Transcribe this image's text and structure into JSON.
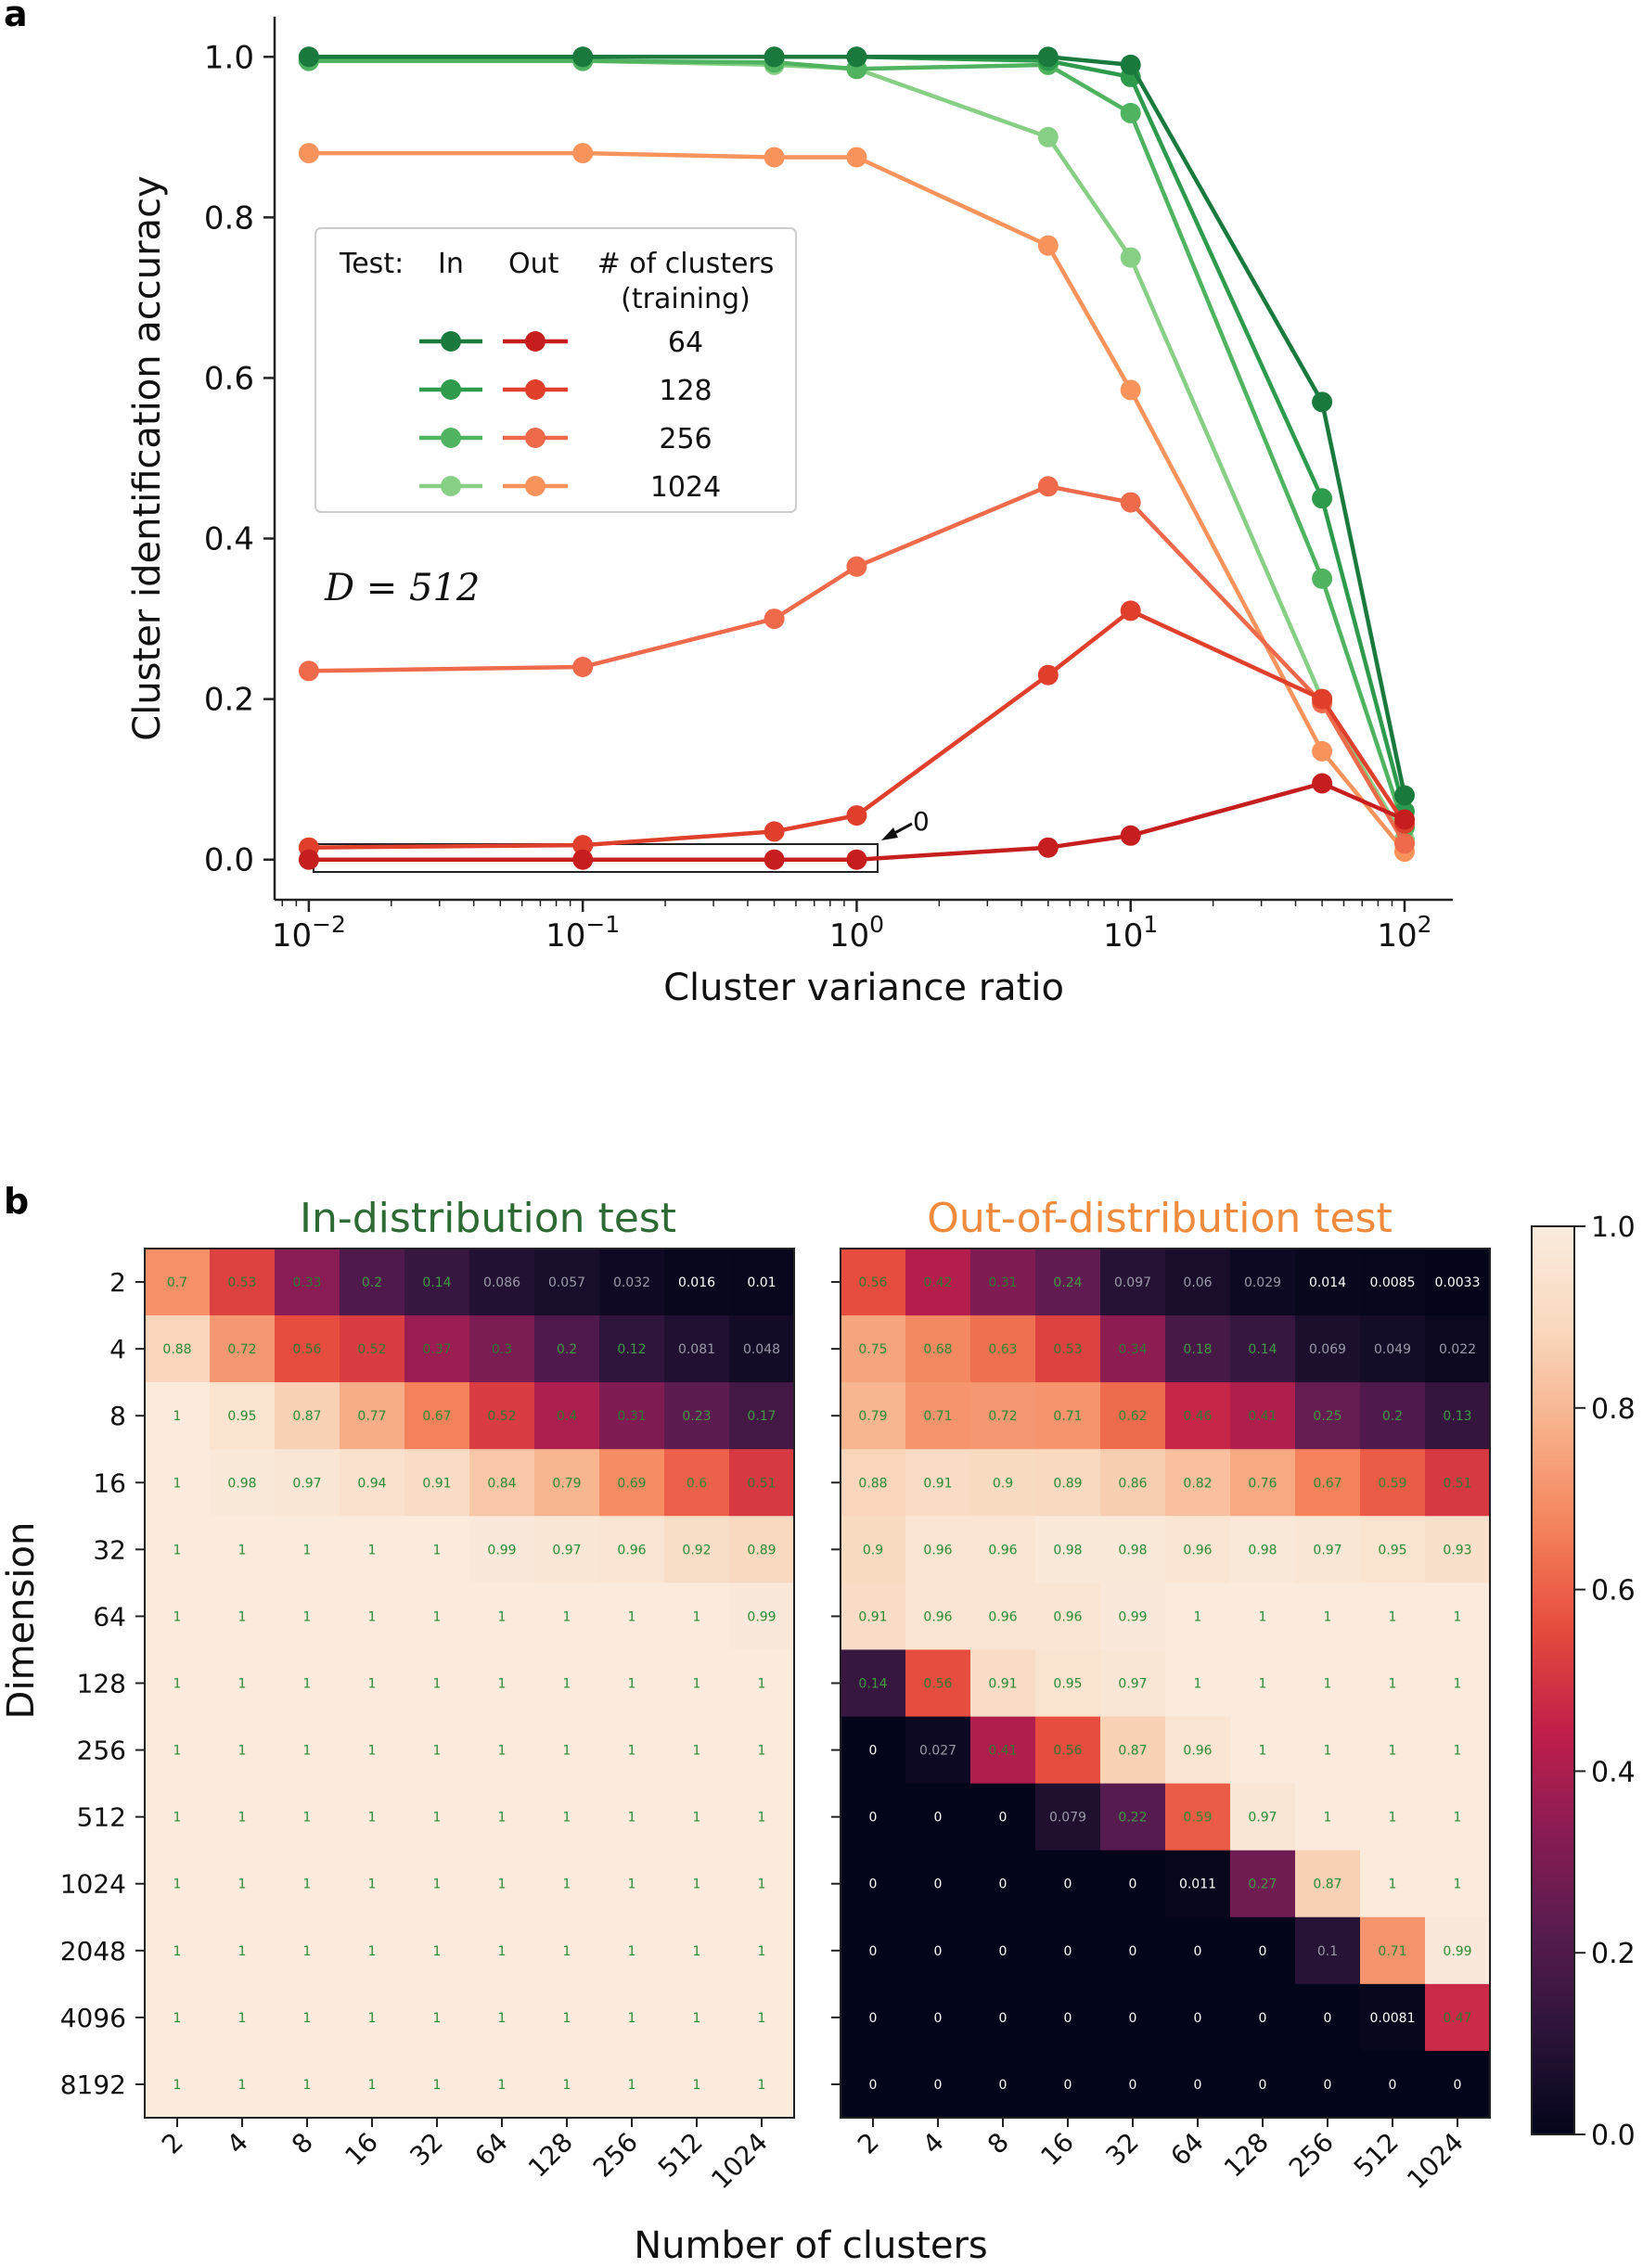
{
  "panels": {
    "a": "a",
    "b": "b"
  },
  "chart_data": [
    {
      "type": "line",
      "panel": "a",
      "xscale": "log",
      "xlabel": "Cluster variance ratio",
      "ylabel": "Cluster identification accuracy",
      "xlim": [
        0.0075,
        150
      ],
      "ylim": [
        -0.05,
        1.05
      ],
      "xticks": [
        {
          "value": 0.01,
          "base": "10",
          "exp": "−2"
        },
        {
          "value": 0.1,
          "base": "10",
          "exp": "−1"
        },
        {
          "value": 1,
          "base": "10",
          "exp": "0"
        },
        {
          "value": 10,
          "base": "10",
          "exp": "1"
        },
        {
          "value": 100,
          "base": "10",
          "exp": "2"
        }
      ],
      "yticks": [
        "0.0",
        "0.2",
        "0.4",
        "0.6",
        "0.8",
        "1.0"
      ],
      "annotation": {
        "text": "D = 512",
        "note": "0"
      },
      "legend": {
        "position": "upper-left",
        "header_test": "Test:",
        "header_in": "In",
        "header_out": "Out",
        "header_clusters_line1": "# of clusters",
        "header_clusters_line2": "(training)",
        "entries": [
          "64",
          "128",
          "256",
          "1024"
        ]
      },
      "x": [
        0.01,
        0.1,
        0.5,
        1,
        5,
        10,
        50,
        100
      ],
      "series": [
        {
          "name": "In 64",
          "test": "in",
          "clusters": "64",
          "color": "#1a7a3e",
          "values": [
            1.0,
            1.0,
            1.0,
            1.0,
            1.0,
            0.99,
            0.57,
            0.08
          ]
        },
        {
          "name": "In 128",
          "test": "in",
          "clusters": "128",
          "color": "#2e9a4c",
          "values": [
            1.0,
            1.0,
            1.0,
            1.0,
            0.995,
            0.975,
            0.45,
            0.06
          ]
        },
        {
          "name": "In 256",
          "test": "in",
          "clusters": "256",
          "color": "#4fb35f",
          "values": [
            0.995,
            0.995,
            0.993,
            0.985,
            0.99,
            0.93,
            0.35,
            0.04
          ]
        },
        {
          "name": "In 1024",
          "test": "in",
          "clusters": "1024",
          "color": "#86cf84",
          "values": [
            0.995,
            0.995,
            0.99,
            0.985,
            0.9,
            0.75,
            0.2,
            0.025
          ]
        },
        {
          "name": "Out 64",
          "test": "out",
          "clusters": "64",
          "color": "#c61e1e",
          "values": [
            0.0,
            0.0,
            0.0,
            0.0,
            0.015,
            0.03,
            0.095,
            0.05
          ]
        },
        {
          "name": "Out 128",
          "test": "out",
          "clusters": "128",
          "color": "#e03f2c",
          "values": [
            0.015,
            0.018,
            0.035,
            0.055,
            0.23,
            0.31,
            0.2,
            0.045
          ]
        },
        {
          "name": "Out 256",
          "test": "out",
          "clusters": "256",
          "color": "#ef6a4a",
          "values": [
            0.235,
            0.24,
            0.3,
            0.365,
            0.465,
            0.445,
            0.195,
            0.02
          ]
        },
        {
          "name": "Out 1024",
          "test": "out",
          "clusters": "1024",
          "color": "#f8935c",
          "values": [
            0.88,
            0.88,
            0.875,
            0.875,
            0.765,
            0.585,
            0.135,
            0.01
          ]
        }
      ]
    },
    {
      "type": "heatmap",
      "panel": "b",
      "title": "In-distribution test",
      "title_color": "#2e6b34",
      "xlabel": "Number of clusters",
      "ylabel": "Dimension",
      "x_categories": [
        "2",
        "4",
        "8",
        "16",
        "32",
        "64",
        "128",
        "256",
        "512",
        "1024"
      ],
      "y_categories": [
        "2",
        "4",
        "8",
        "16",
        "32",
        "64",
        "128",
        "256",
        "512",
        "1024",
        "2048",
        "4096",
        "8192"
      ],
      "values": [
        [
          0.7,
          0.53,
          0.33,
          0.2,
          0.14,
          0.086,
          0.057,
          0.032,
          0.016,
          0.01
        ],
        [
          0.88,
          0.72,
          0.56,
          0.52,
          0.37,
          0.3,
          0.2,
          0.12,
          0.081,
          0.048
        ],
        [
          1.0,
          0.95,
          0.87,
          0.77,
          0.67,
          0.52,
          0.4,
          0.31,
          0.23,
          0.17
        ],
        [
          1.0,
          0.98,
          0.97,
          0.94,
          0.91,
          0.84,
          0.79,
          0.69,
          0.6,
          0.51
        ],
        [
          1.0,
          1.0,
          1.0,
          1.0,
          1.0,
          0.99,
          0.97,
          0.96,
          0.92,
          0.89
        ],
        [
          1.0,
          1.0,
          1.0,
          1.0,
          1.0,
          1.0,
          1.0,
          1.0,
          1.0,
          0.99
        ],
        [
          1.0,
          1.0,
          1.0,
          1.0,
          1.0,
          1.0,
          1.0,
          1.0,
          1.0,
          1.0
        ],
        [
          1.0,
          1.0,
          1.0,
          1.0,
          1.0,
          1.0,
          1.0,
          1.0,
          1.0,
          1.0
        ],
        [
          1.0,
          1.0,
          1.0,
          1.0,
          1.0,
          1.0,
          1.0,
          1.0,
          1.0,
          1.0
        ],
        [
          1.0,
          1.0,
          1.0,
          1.0,
          1.0,
          1.0,
          1.0,
          1.0,
          1.0,
          1.0
        ],
        [
          1.0,
          1.0,
          1.0,
          1.0,
          1.0,
          1.0,
          1.0,
          1.0,
          1.0,
          1.0
        ],
        [
          1.0,
          1.0,
          1.0,
          1.0,
          1.0,
          1.0,
          1.0,
          1.0,
          1.0,
          1.0
        ],
        [
          1.0,
          1.0,
          1.0,
          1.0,
          1.0,
          1.0,
          1.0,
          1.0,
          1.0,
          1.0
        ]
      ]
    },
    {
      "type": "heatmap",
      "panel": "b",
      "title": "Out-of-distribution test",
      "title_color": "#f08a3c",
      "xlabel": "Number of clusters",
      "ylabel": "Dimension",
      "x_categories": [
        "2",
        "4",
        "8",
        "16",
        "32",
        "64",
        "128",
        "256",
        "512",
        "1024"
      ],
      "y_categories": [
        "2",
        "4",
        "8",
        "16",
        "32",
        "64",
        "128",
        "256",
        "512",
        "1024",
        "2048",
        "4096",
        "8192"
      ],
      "values": [
        [
          0.56,
          0.42,
          0.31,
          0.24,
          0.097,
          0.06,
          0.029,
          0.014,
          0.0085,
          0.0033
        ],
        [
          0.75,
          0.68,
          0.63,
          0.53,
          0.34,
          0.18,
          0.14,
          0.069,
          0.049,
          0.022
        ],
        [
          0.79,
          0.71,
          0.72,
          0.71,
          0.62,
          0.46,
          0.41,
          0.25,
          0.2,
          0.13
        ],
        [
          0.88,
          0.91,
          0.9,
          0.89,
          0.86,
          0.82,
          0.76,
          0.67,
          0.59,
          0.51
        ],
        [
          0.9,
          0.96,
          0.96,
          0.98,
          0.98,
          0.96,
          0.98,
          0.97,
          0.95,
          0.93
        ],
        [
          0.91,
          0.96,
          0.96,
          0.96,
          0.99,
          1.0,
          1.0,
          1.0,
          1.0,
          1.0
        ],
        [
          0.14,
          0.56,
          0.91,
          0.95,
          0.97,
          1.0,
          1.0,
          1.0,
          1.0,
          1.0
        ],
        [
          0.0,
          0.027,
          0.41,
          0.56,
          0.87,
          0.96,
          1.0,
          1.0,
          1.0,
          1.0
        ],
        [
          0.0,
          0.0,
          0.0,
          0.079,
          0.22,
          0.59,
          0.97,
          1.0,
          1.0,
          1.0
        ],
        [
          0.0,
          0.0,
          0.0,
          0.0,
          0.0,
          0.011,
          0.27,
          0.87,
          1.0,
          1.0
        ],
        [
          0.0,
          0.0,
          0.0,
          0.0,
          0.0,
          0.0,
          0.0,
          0.1,
          0.71,
          0.99
        ],
        [
          0.0,
          0.0,
          0.0,
          0.0,
          0.0,
          0.0,
          0.0,
          0.0,
          0.0081,
          0.47
        ],
        [
          0.0,
          0.0,
          0.0,
          0.0,
          0.0,
          0.0,
          0.0,
          0.0,
          0.0,
          0.0
        ]
      ]
    }
  ],
  "colorbar": {
    "range": [
      0.0,
      1.0
    ],
    "ticks": [
      "0.0",
      "0.2",
      "0.4",
      "0.6",
      "0.8",
      "1.0"
    ],
    "colormap": "rocket",
    "stops": [
      "#03051a",
      "#2b1439",
      "#581c4f",
      "#8a1c54",
      "#c11f4a",
      "#e64b3d",
      "#f4825a",
      "#f7b08a",
      "#f9d9bf",
      "#faebdd"
    ]
  }
}
